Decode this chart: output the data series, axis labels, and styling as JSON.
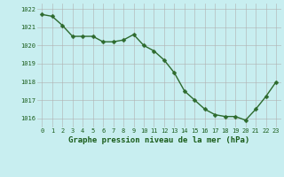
{
  "x": [
    0,
    1,
    2,
    3,
    4,
    5,
    6,
    7,
    8,
    9,
    10,
    11,
    12,
    13,
    14,
    15,
    16,
    17,
    18,
    19,
    20,
    21,
    22,
    23
  ],
  "y": [
    1021.7,
    1021.6,
    1021.1,
    1020.5,
    1020.5,
    1020.5,
    1020.2,
    1020.2,
    1020.3,
    1020.6,
    1020.0,
    1019.7,
    1019.2,
    1018.5,
    1017.5,
    1017.0,
    1016.5,
    1016.2,
    1016.1,
    1016.1,
    1015.9,
    1016.5,
    1017.2,
    1018.0
  ],
  "line_color": "#2d6a2d",
  "marker": "D",
  "marker_size": 2.5,
  "line_width": 1.0,
  "bg_color": "#c8eef0",
  "grid_color": "#b0b0b0",
  "xlabel": "Graphe pression niveau de la mer (hPa)",
  "ylim": [
    1015.5,
    1022.3
  ],
  "xlim": [
    -0.5,
    23.5
  ],
  "yticks": [
    1016,
    1017,
    1018,
    1019,
    1020,
    1021,
    1022
  ],
  "xticks": [
    0,
    1,
    2,
    3,
    4,
    5,
    6,
    7,
    8,
    9,
    10,
    11,
    12,
    13,
    14,
    15,
    16,
    17,
    18,
    19,
    20,
    21,
    22,
    23
  ],
  "tick_color": "#1a5c1a",
  "tick_fontsize": 5.0,
  "xlabel_fontsize": 6.5,
  "xlabel_fontweight": "bold",
  "xlabel_color": "#1a5c1a"
}
